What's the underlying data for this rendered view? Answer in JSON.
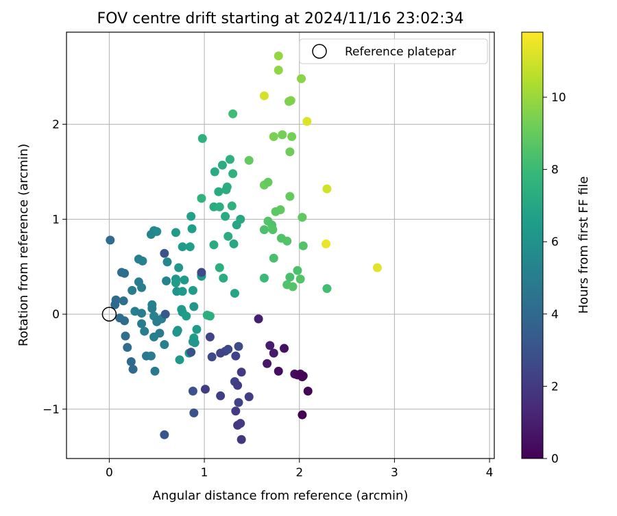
{
  "chart_data": {
    "type": "scatter",
    "title": "FOV centre drift starting at 2024/11/16 23:02:34",
    "xlabel": "Angular distance from reference (arcmin)",
    "ylabel": "Rotation from reference (arcmin)",
    "xlim": [
      -0.45,
      4.05
    ],
    "ylim": [
      -1.52,
      2.97
    ],
    "xticks": [
      0,
      1,
      2,
      3,
      4
    ],
    "xtick_labels": [
      "0",
      "1",
      "2",
      "3",
      "4"
    ],
    "yticks": [
      -1,
      0,
      1,
      2
    ],
    "ytick_labels": [
      "−1",
      "0",
      "1",
      "2"
    ],
    "grid": true,
    "legend": {
      "position": "top-right",
      "entries": [
        {
          "label": "Reference platepar",
          "marker": "open-circle"
        }
      ]
    },
    "reference_point": {
      "x": 0,
      "y": 0
    },
    "colorbar": {
      "label": "Hours from first FF file",
      "colormap": "viridis",
      "range": [
        0,
        11.8
      ],
      "ticks": [
        0,
        2,
        4,
        6,
        8,
        10
      ],
      "tick_labels": [
        "0",
        "2",
        "4",
        "6",
        "8",
        "10"
      ]
    },
    "points": [
      {
        "x": 2.82,
        "y": 0.49,
        "h": 11.3
      },
      {
        "x": 2.28,
        "y": 0.74,
        "h": 11.5
      },
      {
        "x": 2.29,
        "y": 1.32,
        "h": 11.0
      },
      {
        "x": 2.08,
        "y": 2.03,
        "h": 11.2
      },
      {
        "x": 1.63,
        "y": 2.3,
        "h": 11.1
      },
      {
        "x": 1.78,
        "y": 2.72,
        "h": 9.9
      },
      {
        "x": 1.78,
        "y": 2.57,
        "h": 9.8
      },
      {
        "x": 2.02,
        "y": 2.48,
        "h": 9.7
      },
      {
        "x": 1.91,
        "y": 2.25,
        "h": 9.6
      },
      {
        "x": 1.89,
        "y": 2.24,
        "h": 9.5
      },
      {
        "x": 1.73,
        "y": 1.87,
        "h": 9.4
      },
      {
        "x": 1.82,
        "y": 1.89,
        "h": 9.3
      },
      {
        "x": 1.92,
        "y": 1.87,
        "h": 9.3
      },
      {
        "x": 1.9,
        "y": 1.71,
        "h": 9.2
      },
      {
        "x": 1.47,
        "y": 1.62,
        "h": 9.0
      },
      {
        "x": 1.63,
        "y": 1.36,
        "h": 9.1
      },
      {
        "x": 1.67,
        "y": 1.39,
        "h": 9.0
      },
      {
        "x": 1.9,
        "y": 1.24,
        "h": 9.0
      },
      {
        "x": 1.8,
        "y": 1.1,
        "h": 8.9
      },
      {
        "x": 1.75,
        "y": 1.08,
        "h": 8.8
      },
      {
        "x": 2.03,
        "y": 1.02,
        "h": 8.9
      },
      {
        "x": 1.67,
        "y": 0.98,
        "h": 8.6
      },
      {
        "x": 1.71,
        "y": 0.94,
        "h": 8.5
      },
      {
        "x": 1.72,
        "y": 0.89,
        "h": 8.6
      },
      {
        "x": 1.63,
        "y": 0.89,
        "h": 8.4
      },
      {
        "x": 1.81,
        "y": 0.8,
        "h": 8.5
      },
      {
        "x": 1.87,
        "y": 0.77,
        "h": 8.6
      },
      {
        "x": 2.04,
        "y": 0.72,
        "h": 8.6
      },
      {
        "x": 1.73,
        "y": 0.59,
        "h": 8.3
      },
      {
        "x": 1.98,
        "y": 0.46,
        "h": 8.4
      },
      {
        "x": 1.9,
        "y": 0.39,
        "h": 8.3
      },
      {
        "x": 2.01,
        "y": 0.37,
        "h": 8.6
      },
      {
        "x": 1.87,
        "y": 0.31,
        "h": 8.5
      },
      {
        "x": 1.93,
        "y": 0.29,
        "h": 8.6
      },
      {
        "x": 2.29,
        "y": 0.27,
        "h": 8.2
      },
      {
        "x": 1.63,
        "y": 0.38,
        "h": 8.0
      },
      {
        "x": 1.3,
        "y": 2.11,
        "h": 8.1
      },
      {
        "x": 0.98,
        "y": 1.85,
        "h": 7.5
      },
      {
        "x": 1.27,
        "y": 1.63,
        "h": 7.5
      },
      {
        "x": 1.19,
        "y": 1.57,
        "h": 7.3
      },
      {
        "x": 1.11,
        "y": 1.5,
        "h": 7.2
      },
      {
        "x": 1.3,
        "y": 1.48,
        "h": 7.6
      },
      {
        "x": 1.24,
        "y": 1.34,
        "h": 7.4
      },
      {
        "x": 1.23,
        "y": 1.31,
        "h": 7.3
      },
      {
        "x": 1.15,
        "y": 1.29,
        "h": 7.2
      },
      {
        "x": 0.97,
        "y": 1.22,
        "h": 7.6
      },
      {
        "x": 1.1,
        "y": 1.13,
        "h": 7.3
      },
      {
        "x": 1.16,
        "y": 1.13,
        "h": 7.4
      },
      {
        "x": 1.29,
        "y": 1.14,
        "h": 7.5
      },
      {
        "x": 1.22,
        "y": 1.03,
        "h": 7.2
      },
      {
        "x": 1.38,
        "y": 1.0,
        "h": 7.1
      },
      {
        "x": 1.34,
        "y": 0.94,
        "h": 7.0
      },
      {
        "x": 1.25,
        "y": 0.82,
        "h": 7.3
      },
      {
        "x": 1.31,
        "y": 0.74,
        "h": 7.0
      },
      {
        "x": 1.1,
        "y": 0.73,
        "h": 7.2
      },
      {
        "x": 1.16,
        "y": 0.49,
        "h": 7.4
      },
      {
        "x": 1.2,
        "y": 0.38,
        "h": 7.3
      },
      {
        "x": 1.32,
        "y": 0.22,
        "h": 6.9
      },
      {
        "x": 1.03,
        "y": -0.01,
        "h": 7.5
      },
      {
        "x": 1.06,
        "y": -0.02,
        "h": 7.4
      },
      {
        "x": 0.86,
        "y": 1.03,
        "h": 6.7
      },
      {
        "x": 0.87,
        "y": 0.9,
        "h": 6.6
      },
      {
        "x": 0.7,
        "y": 0.86,
        "h": 6.4
      },
      {
        "x": 0.77,
        "y": 0.71,
        "h": 6.4
      },
      {
        "x": 0.85,
        "y": 0.71,
        "h": 6.6
      },
      {
        "x": 0.73,
        "y": 0.49,
        "h": 6.2
      },
      {
        "x": 0.97,
        "y": 0.42,
        "h": 6.4
      },
      {
        "x": 0.97,
        "y": 0.4,
        "h": 6.3
      },
      {
        "x": 0.7,
        "y": 0.37,
        "h": 6.2
      },
      {
        "x": 0.79,
        "y": 0.36,
        "h": 6.3
      },
      {
        "x": 0.7,
        "y": 0.33,
        "h": 6.5
      },
      {
        "x": 0.71,
        "y": 0.24,
        "h": 6.1
      },
      {
        "x": 0.77,
        "y": 0.24,
        "h": 6.4
      },
      {
        "x": 0.88,
        "y": 0.25,
        "h": 6.5
      },
      {
        "x": 0.89,
        "y": 0.08,
        "h": 6.2
      },
      {
        "x": 0.76,
        "y": 0.05,
        "h": 6.4
      },
      {
        "x": 0.77,
        "y": 0.02,
        "h": 6.3
      },
      {
        "x": 0.81,
        "y": -0.02,
        "h": 6.5
      },
      {
        "x": 0.72,
        "y": -0.17,
        "h": 6.0
      },
      {
        "x": 0.71,
        "y": -0.19,
        "h": 6.1
      },
      {
        "x": 0.92,
        "y": -0.16,
        "h": 6.4
      },
      {
        "x": 0.89,
        "y": -0.25,
        "h": 6.5
      },
      {
        "x": 0.88,
        "y": -0.29,
        "h": 6.3
      },
      {
        "x": 0.9,
        "y": -0.3,
        "h": 6.2
      },
      {
        "x": 0.84,
        "y": -0.41,
        "h": 6.4
      },
      {
        "x": 0.74,
        "y": -0.48,
        "h": 6.3
      },
      {
        "x": 0.47,
        "y": 0.88,
        "h": 5.5
      },
      {
        "x": 0.5,
        "y": 0.87,
        "h": 5.6
      },
      {
        "x": 0.44,
        "y": 0.84,
        "h": 5.4
      },
      {
        "x": 0.31,
        "y": 0.58,
        "h": 5.1
      },
      {
        "x": 0.35,
        "y": 0.56,
        "h": 5.2
      },
      {
        "x": 0.61,
        "y": 0.55,
        "h": 5.5
      },
      {
        "x": 0.6,
        "y": 0.35,
        "h": 5.3
      },
      {
        "x": 0.31,
        "y": 0.34,
        "h": 4.9
      },
      {
        "x": 0.34,
        "y": 0.28,
        "h": 5.0
      },
      {
        "x": 0.24,
        "y": 0.25,
        "h": 5.0
      },
      {
        "x": 0.45,
        "y": 0.1,
        "h": 5.2
      },
      {
        "x": 0.45,
        "y": 0.06,
        "h": 5.1
      },
      {
        "x": 0.27,
        "y": 0.03,
        "h": 5.0
      },
      {
        "x": 0.34,
        "y": 0.01,
        "h": 4.9
      },
      {
        "x": 0.47,
        "y": -0.02,
        "h": 5.3
      },
      {
        "x": 0.55,
        "y": -0.05,
        "h": 5.2
      },
      {
        "x": 0.5,
        "y": -0.08,
        "h": 5.0
      },
      {
        "x": 0.34,
        "y": -0.1,
        "h": 4.9
      },
      {
        "x": 0.37,
        "y": -0.18,
        "h": 5.0
      },
      {
        "x": 0.53,
        "y": -0.2,
        "h": 4.9
      },
      {
        "x": 0.47,
        "y": -0.24,
        "h": 5.1
      },
      {
        "x": 0.58,
        "y": -0.32,
        "h": 5.0
      },
      {
        "x": 0.39,
        "y": -0.44,
        "h": 4.8
      },
      {
        "x": 0.44,
        "y": -0.44,
        "h": 4.9
      },
      {
        "x": 0.48,
        "y": -0.6,
        "h": 4.8
      },
      {
        "x": 0.01,
        "y": 0.78,
        "h": 4.2
      },
      {
        "x": 0.13,
        "y": 0.44,
        "h": 4.2
      },
      {
        "x": 0.16,
        "y": 0.43,
        "h": 4.3
      },
      {
        "x": 0.07,
        "y": 0.15,
        "h": 4.1
      },
      {
        "x": 0.15,
        "y": 0.14,
        "h": 4.3
      },
      {
        "x": 0.06,
        "y": 0.1,
        "h": 4.0
      },
      {
        "x": 0.11,
        "y": -0.04,
        "h": 4.2
      },
      {
        "x": 0.16,
        "y": -0.07,
        "h": 4.1
      },
      {
        "x": 0.17,
        "y": -0.23,
        "h": 4.3
      },
      {
        "x": 0.19,
        "y": -0.35,
        "h": 4.2
      },
      {
        "x": 0.23,
        "y": -0.5,
        "h": 4.0
      },
      {
        "x": 0.25,
        "y": -0.58,
        "h": 4.1
      },
      {
        "x": 0.59,
        "y": 0.0,
        "h": 3.3
      },
      {
        "x": 0.58,
        "y": 0.64,
        "h": 3.0
      },
      {
        "x": 0.58,
        "y": -1.27,
        "h": 3.1
      },
      {
        "x": 0.88,
        "y": -0.81,
        "h": 3.0
      },
      {
        "x": 0.89,
        "y": -1.04,
        "h": 3.0
      },
      {
        "x": 0.97,
        "y": 0.44,
        "h": 2.6
      },
      {
        "x": 0.86,
        "y": -0.4,
        "h": 2.9
      },
      {
        "x": 1.06,
        "y": -0.24,
        "h": 2.4
      },
      {
        "x": 1.08,
        "y": -0.45,
        "h": 2.6
      },
      {
        "x": 1.17,
        "y": -0.41,
        "h": 2.4
      },
      {
        "x": 1.22,
        "y": -0.39,
        "h": 2.4
      },
      {
        "x": 1.25,
        "y": -0.37,
        "h": 2.6
      },
      {
        "x": 1.33,
        "y": -0.44,
        "h": 2.3
      },
      {
        "x": 1.36,
        "y": -0.34,
        "h": 2.7
      },
      {
        "x": 1.32,
        "y": -0.71,
        "h": 2.4
      },
      {
        "x": 1.39,
        "y": -0.61,
        "h": 2.0
      },
      {
        "x": 1.35,
        "y": -0.75,
        "h": 2.1
      },
      {
        "x": 1.01,
        "y": -0.79,
        "h": 2.1
      },
      {
        "x": 1.17,
        "y": -0.86,
        "h": 2.2
      },
      {
        "x": 1.47,
        "y": -0.87,
        "h": 2.1
      },
      {
        "x": 1.36,
        "y": -0.93,
        "h": 2.3
      },
      {
        "x": 1.33,
        "y": -1.02,
        "h": 2.0
      },
      {
        "x": 1.35,
        "y": -1.17,
        "h": 1.9
      },
      {
        "x": 1.38,
        "y": -1.15,
        "h": 2.0
      },
      {
        "x": 1.39,
        "y": -1.32,
        "h": 1.8
      },
      {
        "x": 1.57,
        "y": -0.05,
        "h": 1.0
      },
      {
        "x": 1.69,
        "y": -0.33,
        "h": 0.9
      },
      {
        "x": 1.73,
        "y": -0.41,
        "h": 0.8
      },
      {
        "x": 1.84,
        "y": -0.36,
        "h": 0.5
      },
      {
        "x": 1.66,
        "y": -0.52,
        "h": 0.7
      },
      {
        "x": 1.78,
        "y": -0.6,
        "h": 0.4
      },
      {
        "x": 1.95,
        "y": -0.63,
        "h": 0.4
      },
      {
        "x": 1.98,
        "y": -0.64,
        "h": 0.3
      },
      {
        "x": 2.01,
        "y": -0.63,
        "h": 0.2
      },
      {
        "x": 2.04,
        "y": -0.65,
        "h": 0.2
      },
      {
        "x": 2.03,
        "y": -0.66,
        "h": 0.1
      },
      {
        "x": 2.09,
        "y": -0.81,
        "h": 0.1
      },
      {
        "x": 2.03,
        "y": -1.06,
        "h": 0.0
      }
    ]
  }
}
